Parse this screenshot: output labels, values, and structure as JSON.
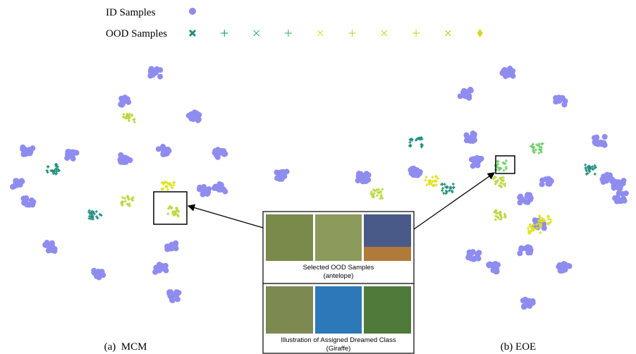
{
  "legend": {
    "id_label": "ID Samples",
    "ood_label": "OOD Samples"
  },
  "panels": [
    {
      "caption": "(a)  MCM"
    },
    {
      "caption": "(b) EOE"
    }
  ],
  "inset": {
    "top_caption": [
      "Selected OOD Samples",
      "(antelope)"
    ],
    "bottom_caption": [
      "Illustration of Assigned Dreamed Class",
      "(Giraffe)"
    ]
  }
}
